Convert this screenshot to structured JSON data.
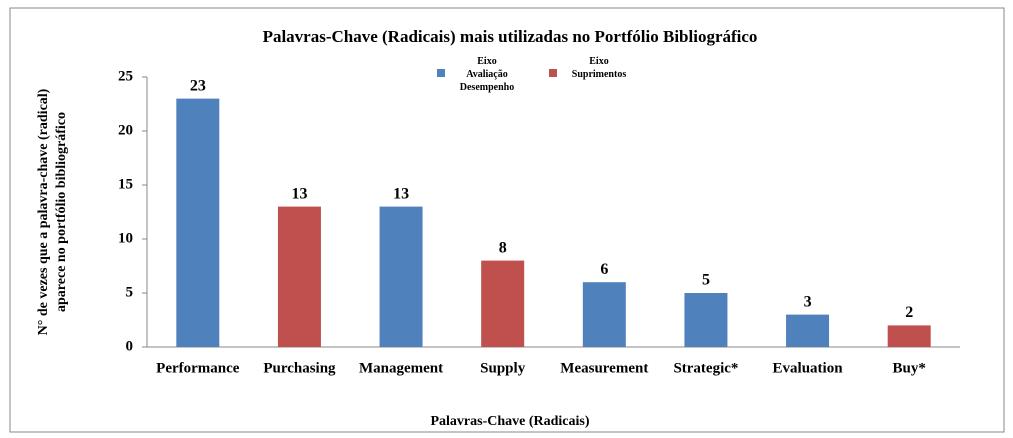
{
  "chart_data": {
    "type": "bar",
    "title": "Palavras-Chave (Radicais) mais utilizadas no Portfólio Bibliográfico",
    "xlabel": "Palavras-Chave (Radicais)",
    "ylabel": [
      "N° de vezes que a palavra-chave (radical)",
      "aparece no portfólio bibliográfico"
    ],
    "categories": [
      "Performance",
      "Purchasing",
      "Management",
      "Supply",
      "Measurement",
      "Strategic*",
      "Evaluation",
      "Buy*"
    ],
    "values": [
      23,
      13,
      13,
      8,
      6,
      5,
      3,
      2
    ],
    "colors": [
      "#4f81bd",
      "#c0504d",
      "#4f81bd",
      "#c0504d",
      "#4f81bd",
      "#4f81bd",
      "#4f81bd",
      "#c0504d"
    ],
    "legend": [
      {
        "name": "Eixo Avaliação Desempenho",
        "color": "#4f81bd"
      },
      {
        "name": "Eixo Suprimentos",
        "color": "#c0504d"
      }
    ],
    "ylim": [
      0,
      25
    ],
    "yticks": [
      0,
      5,
      10,
      15,
      20,
      25
    ]
  }
}
